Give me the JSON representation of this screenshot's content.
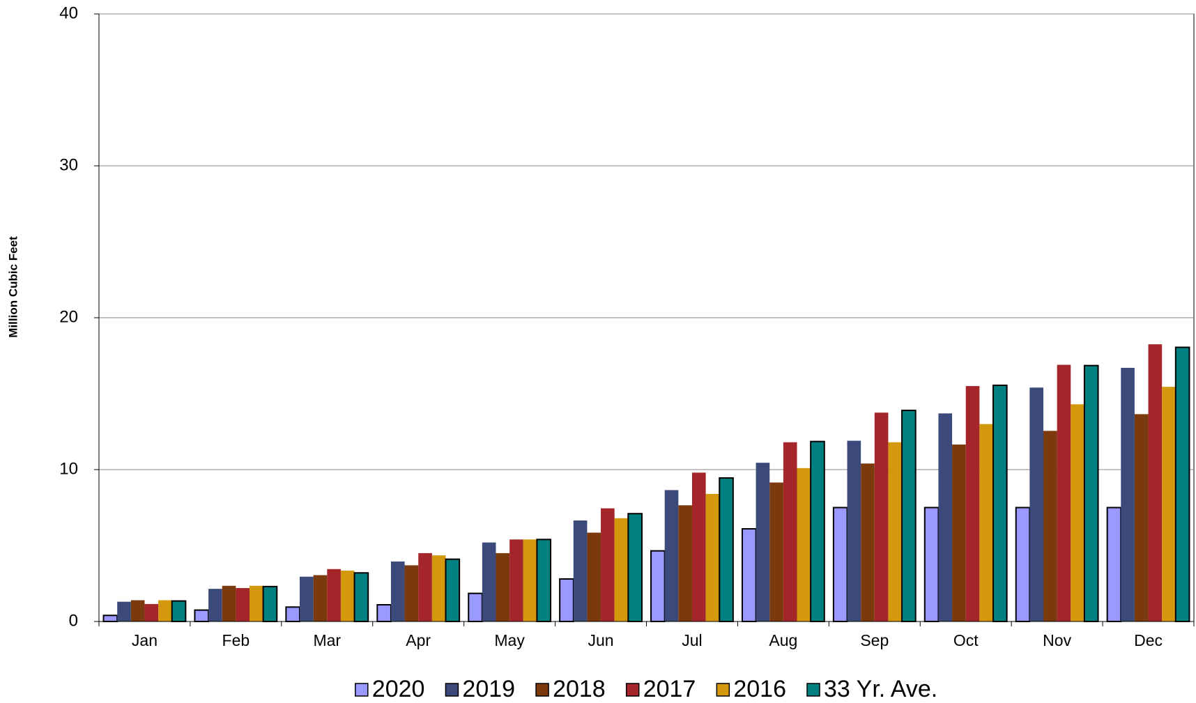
{
  "chart_data": {
    "type": "bar",
    "y_label": "Million Cubic Feet",
    "categories": [
      "Jan",
      "Feb",
      "Mar",
      "Apr",
      "May",
      "Jun",
      "Jul",
      "Aug",
      "Sep",
      "Oct",
      "Nov",
      "Dec"
    ],
    "series": [
      {
        "name": "2020",
        "color": "#9999ff",
        "outlined": true,
        "values": [
          0.4,
          0.75,
          0.95,
          1.1,
          1.85,
          2.8,
          4.65,
          6.1,
          7.5,
          7.5,
          7.5,
          7.5
        ]
      },
      {
        "name": "2019",
        "color": "#3b4a7a",
        "outlined": false,
        "values": [
          1.3,
          2.15,
          2.95,
          3.95,
          5.2,
          6.65,
          8.65,
          10.45,
          11.9,
          13.7,
          15.4,
          16.7
        ]
      },
      {
        "name": "2018",
        "color": "#7b3a0e",
        "outlined": false,
        "values": [
          1.4,
          2.35,
          3.05,
          3.7,
          4.5,
          5.85,
          7.65,
          9.15,
          10.4,
          11.65,
          12.55,
          13.65
        ]
      },
      {
        "name": "2017",
        "color": "#a5262a",
        "outlined": false,
        "values": [
          1.15,
          2.2,
          3.45,
          4.5,
          5.4,
          7.45,
          9.8,
          11.8,
          13.75,
          15.5,
          16.9,
          18.25
        ]
      },
      {
        "name": "2016",
        "color": "#d4980c",
        "outlined": false,
        "values": [
          1.4,
          2.35,
          3.35,
          4.35,
          5.4,
          6.8,
          8.4,
          10.1,
          11.8,
          13.0,
          14.3,
          15.45
        ]
      },
      {
        "name": "33 Yr. Ave.",
        "color": "#008080",
        "outlined": true,
        "values": [
          1.35,
          2.3,
          3.2,
          4.1,
          5.4,
          7.1,
          9.45,
          11.85,
          13.9,
          15.55,
          16.85,
          18.05
        ]
      }
    ],
    "ylim": [
      0,
      40
    ],
    "yticks": [
      0,
      10,
      20,
      30,
      40
    ],
    "grid": true,
    "legend": "bottom"
  }
}
